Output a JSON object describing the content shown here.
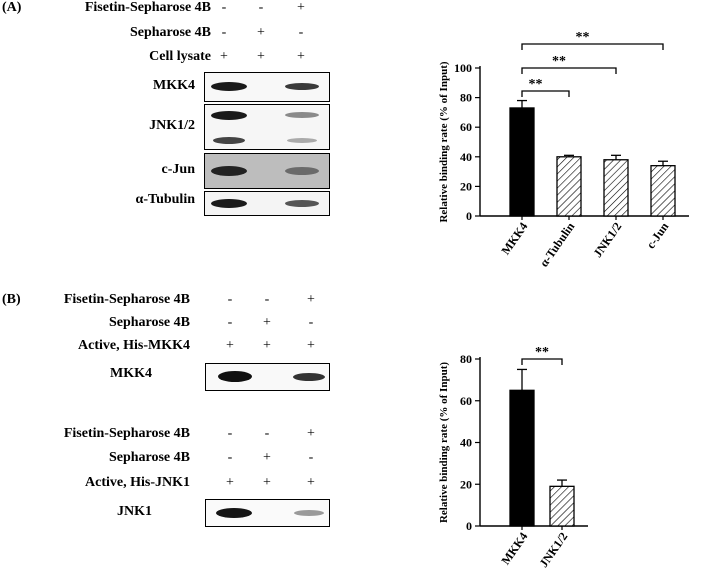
{
  "panel_a": {
    "label": "(A)",
    "conditions": [
      {
        "name": "Fisetin-Sepharose 4B",
        "signs": [
          "-",
          "-",
          "+"
        ]
      },
      {
        "name": "Sepharose 4B",
        "signs": [
          "-",
          "+",
          "-"
        ]
      },
      {
        "name": "Cell lysate",
        "signs": [
          "+",
          "+",
          "+"
        ]
      }
    ],
    "blots": [
      "MKK4",
      "JNK1/2",
      "c-Jun",
      "α-Tubulin"
    ]
  },
  "panel_b": {
    "label": "(B)",
    "group1": {
      "conditions": [
        {
          "name": "Fisetin-Sepharose 4B",
          "signs": [
            "-",
            "-",
            "+"
          ]
        },
        {
          "name": "Sepharose 4B",
          "signs": [
            "-",
            "+",
            "-"
          ]
        },
        {
          "name": "Active, His-MKK4",
          "signs": [
            "+",
            "+",
            "+"
          ]
        }
      ],
      "blot": "MKK4"
    },
    "group2": {
      "conditions": [
        {
          "name": "Fisetin-Sepharose 4B",
          "signs": [
            "-",
            "-",
            "+"
          ]
        },
        {
          "name": "Sepharose 4B",
          "signs": [
            "-",
            "+",
            "-"
          ]
        },
        {
          "name": "Active, His-JNK1",
          "signs": [
            "+",
            "+",
            "+"
          ]
        }
      ],
      "blot": "JNK1"
    }
  },
  "colors": {
    "solid_bar": "#000000",
    "hatch_bar": "#000000",
    "background": "#ffffff"
  },
  "chart_data": [
    {
      "type": "bar",
      "categories": [
        "MKK4",
        "α-Tubulin",
        "JNK1/2",
        "c-Jun"
      ],
      "values": [
        73,
        40,
        38,
        34
      ],
      "errors": [
        5,
        1,
        3,
        3
      ],
      "fills": [
        "solid",
        "hatched",
        "hatched",
        "hatched"
      ],
      "ylabel": "Relative binding rate (% of Input)",
      "ylim": [
        0,
        100
      ],
      "yticks": [
        0,
        20,
        40,
        60,
        80,
        100
      ],
      "significance": [
        {
          "from": "MKK4",
          "to": "α-Tubulin",
          "label": "**"
        },
        {
          "from": "MKK4",
          "to": "JNK1/2",
          "label": "**"
        },
        {
          "from": "MKK4",
          "to": "c-Jun",
          "label": "**"
        }
      ]
    },
    {
      "type": "bar",
      "categories": [
        "MKK4",
        "JNK1/2"
      ],
      "values": [
        65,
        19
      ],
      "errors": [
        10,
        3
      ],
      "fills": [
        "solid",
        "hatched"
      ],
      "ylabel": "Relative binding rate (% of Input)",
      "ylim": [
        0,
        80
      ],
      "yticks": [
        0,
        20,
        40,
        60,
        80
      ],
      "significance": [
        {
          "from": "MKK4",
          "to": "JNK1/2",
          "label": "**"
        }
      ]
    }
  ]
}
